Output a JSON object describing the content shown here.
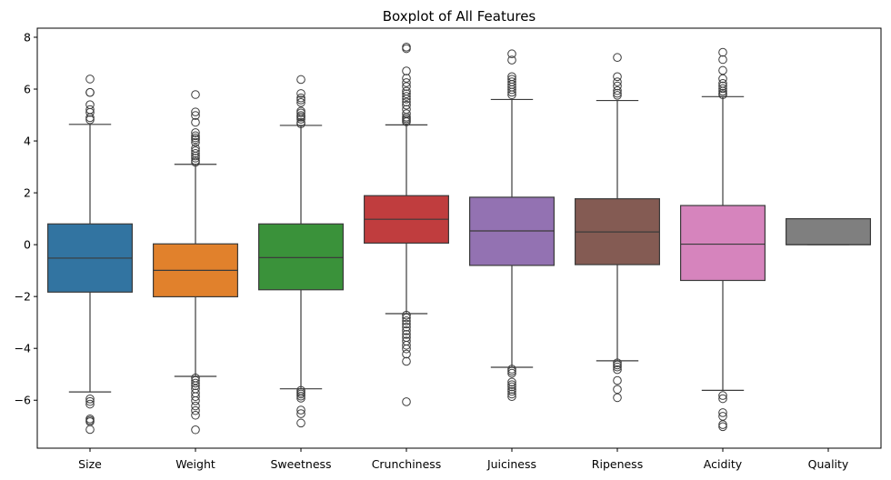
{
  "chart_data": {
    "type": "boxplot",
    "title": "Boxplot of All Features",
    "xlabel": "",
    "ylabel": "",
    "ylim": [
      -7.85,
      8.35
    ],
    "yticks": [
      -6,
      -4,
      -2,
      0,
      2,
      4,
      6,
      8
    ],
    "grid": false,
    "legend": "none",
    "categories": [
      "Size",
      "Weight",
      "Sweetness",
      "Crunchiness",
      "Juiciness",
      "Ripeness",
      "Acidity",
      "Quality"
    ],
    "boxes": [
      {
        "name": "Size",
        "color": "#3274a1",
        "whisker_low": -5.68,
        "q1": -1.83,
        "median": -0.52,
        "q3": 0.8,
        "whisker_high": 4.64,
        "outliers": [
          6.39,
          5.87,
          5.87,
          5.4,
          5.21,
          5.1,
          4.9,
          4.82,
          -5.95,
          -6.05,
          -6.15,
          -6.72,
          -6.78,
          -6.83,
          -7.13
        ]
      },
      {
        "name": "Weight",
        "color": "#e1812c",
        "whisker_low": -5.08,
        "q1": -2.01,
        "median": -0.99,
        "q3": 0.03,
        "whisker_high": 3.1,
        "outliers": [
          5.79,
          5.12,
          4.98,
          4.72,
          4.32,
          4.2,
          4.12,
          4.05,
          3.95,
          3.72,
          3.62,
          3.52,
          3.42,
          3.34,
          3.24,
          3.18,
          -5.14,
          -5.24,
          -5.34,
          -5.44,
          -5.56,
          -5.72,
          -5.86,
          -6.02,
          -6.22,
          -6.4,
          -6.58,
          -7.14
        ]
      },
      {
        "name": "Sweetness",
        "color": "#3a923a",
        "whisker_low": -5.56,
        "q1": -1.74,
        "median": -0.5,
        "q3": 0.8,
        "whisker_high": 4.6,
        "outliers": [
          6.37,
          5.83,
          5.66,
          5.58,
          5.48,
          5.15,
          5.08,
          4.98,
          4.92,
          4.84,
          4.72,
          4.66,
          -5.62,
          -5.7,
          -5.76,
          -5.84,
          -5.92,
          -6.38,
          -6.52,
          -6.88
        ]
      },
      {
        "name": "Crunchiness",
        "color": "#c03d3e",
        "whisker_low": -2.66,
        "q1": 0.06,
        "median": 0.98,
        "q3": 1.89,
        "whisker_high": 4.62,
        "outliers": [
          7.62,
          7.56,
          6.7,
          6.42,
          6.25,
          6.1,
          5.92,
          5.82,
          5.72,
          5.62,
          5.5,
          5.38,
          5.22,
          5.05,
          4.92,
          4.86,
          4.8,
          4.74,
          -2.72,
          -2.82,
          -2.94,
          -3.06,
          -3.18,
          -3.32,
          -3.46,
          -3.58,
          -3.72,
          -3.88,
          -4.02,
          -4.22,
          -4.5,
          -6.06
        ]
      },
      {
        "name": "Juiciness",
        "color": "#9372b2",
        "whisker_low": -4.73,
        "q1": -0.8,
        "median": 0.53,
        "q3": 1.83,
        "whisker_high": 5.6,
        "outliers": [
          7.36,
          7.12,
          6.48,
          6.38,
          6.28,
          6.18,
          6.08,
          5.98,
          5.88,
          5.78,
          -4.8,
          -4.88,
          -4.96,
          -5.3,
          -5.4,
          -5.48,
          -5.58,
          -5.66,
          -5.76,
          -5.86
        ]
      },
      {
        "name": "Ripeness",
        "color": "#845b53",
        "whisker_low": -4.48,
        "q1": -0.77,
        "median": 0.49,
        "q3": 1.77,
        "whisker_high": 5.56,
        "outliers": [
          7.22,
          6.48,
          6.28,
          6.12,
          5.94,
          5.84,
          5.76,
          -4.56,
          -4.64,
          -4.72,
          -4.82,
          -5.24,
          -5.58,
          -5.9
        ]
      },
      {
        "name": "Acidity",
        "color": "#d684bd",
        "whisker_low": -5.62,
        "q1": -1.38,
        "median": 0.02,
        "q3": 1.51,
        "whisker_high": 5.71,
        "outliers": [
          7.42,
          7.14,
          6.72,
          6.4,
          6.22,
          6.12,
          6.02,
          5.92,
          5.84,
          5.78,
          -5.82,
          -5.94,
          -6.48,
          -6.62,
          -6.94,
          -7.02
        ]
      },
      {
        "name": "Quality",
        "color": "#7f7f7f",
        "whisker_low": 0,
        "q1": 0,
        "median": 0,
        "q3": 1,
        "whisker_high": 1,
        "outliers": []
      }
    ]
  }
}
